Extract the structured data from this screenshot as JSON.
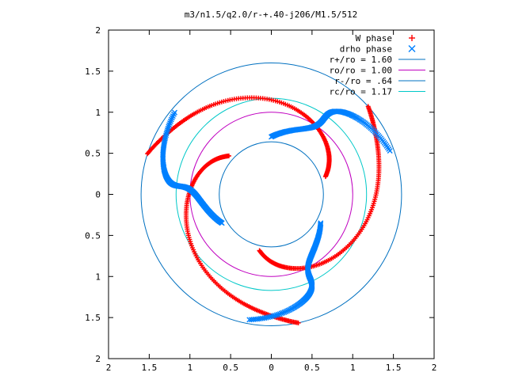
{
  "chart_data": {
    "type": "scatter",
    "title": "m3/n1.5/q2.0/r-+.40-j206/M1.5/512",
    "xlim": [
      -2,
      2
    ],
    "ylim": [
      -2,
      2
    ],
    "x_ticks": [
      -2,
      -1.5,
      -1,
      -0.5,
      0,
      0.5,
      1,
      1.5,
      2
    ],
    "y_ticks": [
      -2,
      -1.5,
      -1,
      -0.5,
      0,
      0.5,
      1,
      1.5,
      2
    ],
    "x_tick_labels": [
      "2",
      "1.5",
      "1",
      "0.5",
      "0",
      "0.5",
      "1",
      "1.5",
      "2"
    ],
    "y_tick_labels": [
      "2",
      "1.5",
      "1",
      "0.5",
      "0",
      "0.5",
      "1",
      "1.5",
      "2"
    ],
    "grid": false,
    "legend_position": "top-right",
    "series": [
      {
        "name": "W phase",
        "marker": "plus",
        "color": "#ff0000",
        "arms": [
          {
            "angle_start": 162,
            "angle_end": 18,
            "r_start": 1.6,
            "r_end": 0.7,
            "twist": 0.55
          },
          {
            "angle_start": 42,
            "angle_end": 258,
            "r_start": 1.6,
            "r_end": 0.7,
            "twist": 0.55
          },
          {
            "angle_start": 282,
            "angle_end": 138,
            "r_start": 1.6,
            "r_end": 0.7,
            "twist": 0.55
          }
        ]
      },
      {
        "name": "drho phase",
        "marker": "cross",
        "color": "#0080ff",
        "arms": [
          {
            "angle_start": 20,
            "angle_end": 90,
            "r_start": 1.55,
            "r_end": 0.7,
            "twist": 0.6
          },
          {
            "angle_start": 140,
            "angle_end": 210,
            "r_start": 1.55,
            "r_end": 0.7,
            "twist": 0.6
          },
          {
            "angle_start": 260,
            "angle_end": 330,
            "r_start": 1.55,
            "r_end": 0.7,
            "twist": 0.6
          }
        ]
      },
      {
        "name": "r+/ro = 1.60",
        "type": "circle",
        "radius": 1.6,
        "color": "#0070c0"
      },
      {
        "name": "ro/ro = 1.00",
        "type": "circle",
        "radius": 1.0,
        "color": "#c000c0"
      },
      {
        "name": "r-/ro = .64",
        "type": "circle",
        "radius": 0.64,
        "color": "#0070c0"
      },
      {
        "name": "rc/ro = 1.17",
        "type": "circle",
        "radius": 1.17,
        "color": "#00c8c8"
      }
    ]
  }
}
